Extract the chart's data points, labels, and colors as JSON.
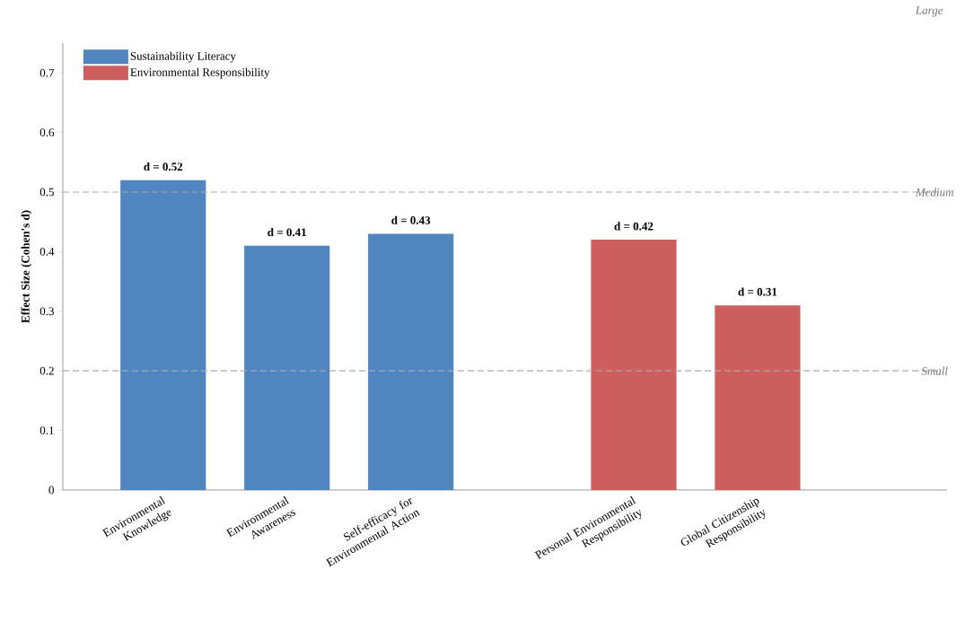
{
  "chart_data": {
    "type": "bar",
    "ylabel": "Effect Size (Cohen's d)",
    "categories": [
      "Environmental Knowledge",
      "Environmental Awareness",
      "Self-efficacy for Environmental Action",
      "Personal Environmental Responsibility",
      "Global Citizenship Responsibility"
    ],
    "series": [
      {
        "name": "Sustainability Literacy",
        "color": "#4f86c0",
        "values": [
          0.52,
          0.41,
          0.43,
          null,
          null
        ],
        "value_labels": [
          "d = 0.52",
          "d = 0.41",
          "d = 0.43",
          null,
          null
        ]
      },
      {
        "name": "Environmental Responsibility",
        "color": "#cc5f5d",
        "values": [
          null,
          null,
          null,
          0.42,
          0.31
        ],
        "value_labels": [
          null,
          null,
          null,
          "d = 0.42",
          "d = 0.31"
        ]
      }
    ],
    "ylim": [
      0,
      0.75
    ],
    "yticks": [
      0,
      0.1,
      0.2,
      0.3,
      0.4,
      0.5,
      0.6,
      0.7
    ],
    "ref_lines": [
      {
        "axis": "y",
        "value": 0.5,
        "label": "Medium",
        "color": "#aaaaaa",
        "line_style": "dashed"
      },
      {
        "axis": "y",
        "value": 0.2,
        "label": "Small",
        "color": "#aaaaaa",
        "line_style": "dashed"
      }
    ],
    "annotations": [
      "Large"
    ],
    "grid": false,
    "legend": "top left"
  }
}
